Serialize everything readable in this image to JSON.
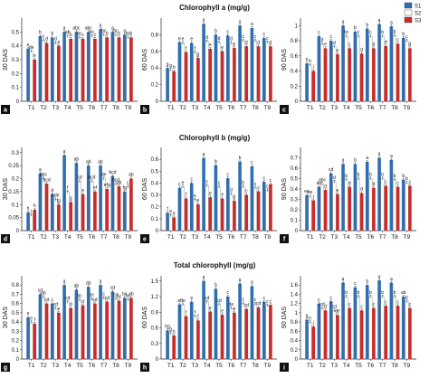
{
  "figure": {
    "row_titles": [
      "Chlorophyll a (mg/g)",
      "Chlorophyll b (mg/g)",
      "Total chlorophyll (mg/g)"
    ],
    "legend": [
      {
        "name": "S1",
        "color": "#2f6fb0"
      },
      {
        "name": "S2",
        "color": "#ffffff"
      },
      {
        "name": "S3",
        "color": "#cc2b2b"
      }
    ],
    "treatments": [
      "T1",
      "T2",
      "T3",
      "T4",
      "T5",
      "T6",
      "T7",
      "T8",
      "T9"
    ]
  },
  "chart_data": [
    {
      "type": "bar",
      "panel": "a",
      "ylabel": "30 DAS",
      "ylim": [
        0,
        0.6
      ],
      "yticks": [
        0,
        0.1,
        0.2,
        0.3,
        0.4,
        0.5
      ],
      "categories": [
        "T1",
        "T2",
        "T3",
        "T4",
        "T5",
        "T6",
        "T7",
        "T8",
        "T9"
      ],
      "series": [
        {
          "name": "S1",
          "values": [
            0.38,
            0.47,
            0.46,
            0.5,
            0.5,
            0.5,
            0.52,
            0.5,
            0.48
          ]
        },
        {
          "name": "S2",
          "values": [
            0.36,
            0.44,
            0.42,
            0.47,
            0.46,
            0.47,
            0.48,
            0.48,
            0.46
          ]
        },
        {
          "name": "S3",
          "values": [
            0.3,
            0.42,
            0.4,
            0.45,
            0.45,
            0.45,
            0.46,
            0.46,
            0.46
          ]
        }
      ],
      "labels": [
        [
          "e",
          "de",
          "e"
        ],
        [
          "b",
          "c",
          "d"
        ],
        [
          "b",
          "d",
          "e"
        ],
        [
          "a",
          "ab",
          "b"
        ],
        [
          "abc",
          "bc",
          "c"
        ],
        [
          "abc",
          "bc",
          "c"
        ],
        [
          "a",
          "bc",
          "b"
        ],
        [
          "a",
          "bc",
          "b"
        ],
        [
          "a",
          "bc",
          "b"
        ]
      ]
    },
    {
      "type": "bar",
      "panel": "b",
      "ylabel": "60 DAS",
      "ylim": [
        0,
        1.0
      ],
      "yticks": [
        0,
        0.2,
        0.4,
        0.6,
        0.8
      ],
      "categories": [
        "T1",
        "T2",
        "T3",
        "T4",
        "T5",
        "T6",
        "T7",
        "T8",
        "T9"
      ],
      "series": [
        {
          "name": "S1",
          "values": [
            0.4,
            0.71,
            0.7,
            0.93,
            0.8,
            0.79,
            0.91,
            0.88,
            0.76
          ]
        },
        {
          "name": "S2",
          "values": [
            0.38,
            0.7,
            0.59,
            0.72,
            0.71,
            0.7,
            0.73,
            0.73,
            0.71
          ]
        },
        {
          "name": "S3",
          "values": [
            0.36,
            0.59,
            0.52,
            0.63,
            0.6,
            0.64,
            0.66,
            0.66,
            0.66
          ]
        }
      ],
      "labels": [
        [
          "g",
          "g",
          "h"
        ],
        [
          "e",
          "e",
          "f"
        ],
        [
          "e",
          "f",
          "g"
        ],
        [
          "a",
          "d",
          "e"
        ],
        [
          "b",
          "d",
          "e"
        ],
        [
          "c",
          "d",
          "e"
        ],
        [
          "a",
          "c",
          "d"
        ],
        [
          "a",
          "c",
          "d"
        ],
        [
          "c",
          "c",
          "d"
        ]
      ]
    },
    {
      "type": "bar",
      "panel": "c",
      "ylabel": "90 DAS",
      "ylim": [
        0,
        1.1
      ],
      "yticks": [
        0,
        0.2,
        0.4,
        0.6,
        0.8,
        1.0
      ],
      "categories": [
        "T1",
        "T2",
        "T3",
        "T4",
        "T5",
        "T6",
        "T7",
        "T8",
        "T9"
      ],
      "series": [
        {
          "name": "S1",
          "values": [
            0.5,
            0.86,
            0.8,
            1.0,
            0.92,
            0.96,
            1.02,
            0.99,
            0.84
          ]
        },
        {
          "name": "S2",
          "values": [
            0.48,
            0.76,
            0.72,
            0.86,
            0.86,
            0.86,
            0.86,
            0.87,
            0.8
          ]
        },
        {
          "name": "S3",
          "values": [
            0.4,
            0.7,
            0.62,
            0.7,
            0.63,
            0.7,
            0.73,
            0.76,
            0.7
          ]
        }
      ],
      "labels": [
        [
          "h",
          "h",
          "i"
        ],
        [
          "c",
          "d",
          "e"
        ],
        [
          "c",
          "d",
          "e"
        ],
        [
          "a",
          "bc",
          "c"
        ],
        [
          "b",
          "c",
          "d"
        ],
        [
          "b",
          "c",
          "d"
        ],
        [
          "a",
          "b",
          "d"
        ],
        [
          "a",
          "b",
          "c"
        ],
        [
          "b",
          "c",
          "d"
        ]
      ]
    },
    {
      "type": "bar",
      "panel": "d",
      "ylabel": "30 DAS",
      "ylim": [
        0,
        0.32
      ],
      "yticks": [
        0,
        0.05,
        0.1,
        0.15,
        0.2,
        0.25,
        0.3
      ],
      "categories": [
        "T1",
        "T2",
        "T3",
        "T4",
        "T5",
        "T6",
        "T7",
        "T8",
        "T9"
      ],
      "series": [
        {
          "name": "S1",
          "values": [
            0.07,
            0.22,
            0.14,
            0.29,
            0.26,
            0.25,
            0.25,
            0.21,
            0.15
          ]
        },
        {
          "name": "S2",
          "values": [
            0.06,
            0.2,
            0.12,
            0.15,
            0.19,
            0.19,
            0.2,
            0.18,
            0.17
          ]
        },
        {
          "name": "S3",
          "values": [
            0.08,
            0.18,
            0.1,
            0.11,
            0.14,
            0.15,
            0.16,
            0.17,
            0.2
          ]
        }
      ],
      "labels": [
        [
          "h",
          "i",
          "h"
        ],
        [
          "a",
          "abc",
          "bcd"
        ],
        [
          "d",
          "bde",
          "fg"
        ],
        [
          "a",
          "f",
          "g"
        ],
        [
          "ab",
          "cd",
          "e"
        ],
        [
          "ab",
          "bcd",
          "ef"
        ],
        [
          "ab",
          "de",
          "efg"
        ],
        [
          "bcd",
          "bcd",
          "ab"
        ],
        [
          "fg",
          "c",
          "ab"
        ]
      ]
    },
    {
      "type": "bar",
      "panel": "e",
      "ylabel": "60 DAS",
      "ylim": [
        0,
        0.7
      ],
      "yticks": [
        0,
        0.1,
        0.2,
        0.3,
        0.4,
        0.5,
        0.6
      ],
      "categories": [
        "T1",
        "T2",
        "T3",
        "T4",
        "T5",
        "T6",
        "T7",
        "T8",
        "T9"
      ],
      "series": [
        {
          "name": "S1",
          "values": [
            0.15,
            0.36,
            0.4,
            0.61,
            0.55,
            0.44,
            0.58,
            0.54,
            0.41
          ]
        },
        {
          "name": "S2",
          "values": [
            0.13,
            0.37,
            0.26,
            0.38,
            0.37,
            0.31,
            0.37,
            0.36,
            0.34
          ]
        },
        {
          "name": "S3",
          "values": [
            0.11,
            0.27,
            0.22,
            0.28,
            0.27,
            0.25,
            0.3,
            0.33,
            0.39
          ]
        }
      ],
      "labels": [
        [
          "f",
          "e",
          "e"
        ],
        [
          "c",
          "e",
          "f"
        ],
        [
          "c",
          "e",
          "e"
        ],
        [
          "a",
          "c",
          "e"
        ],
        [
          "b",
          "c",
          "e"
        ],
        [
          "c",
          "d",
          "d"
        ],
        [
          "b",
          "b",
          "c"
        ],
        [
          "c",
          "c",
          "c"
        ],
        [
          "c",
          "c",
          "c"
        ]
      ]
    },
    {
      "type": "bar",
      "panel": "f",
      "ylabel": "90 DAS",
      "ylim": [
        0,
        0.8
      ],
      "yticks": [
        0,
        0.1,
        0.2,
        0.3,
        0.4,
        0.5,
        0.6,
        0.7
      ],
      "categories": [
        "T1",
        "T2",
        "T3",
        "T4",
        "T5",
        "T6",
        "T7",
        "T8",
        "T9"
      ],
      "series": [
        {
          "name": "S1",
          "values": [
            0.34,
            0.42,
            0.55,
            0.64,
            0.64,
            0.66,
            0.7,
            0.68,
            0.49
          ]
        },
        {
          "name": "S2",
          "values": [
            0.33,
            0.45,
            0.47,
            0.49,
            0.5,
            0.5,
            0.5,
            0.49,
            0.46
          ]
        },
        {
          "name": "S3",
          "values": [
            0.29,
            0.39,
            0.35,
            0.42,
            0.36,
            0.41,
            0.43,
            0.42,
            0.43
          ]
        }
      ],
      "labels": [
        [
          "ee",
          "ee",
          "i"
        ],
        [
          "de",
          "abc",
          "d"
        ],
        [
          "cd",
          "d",
          "e"
        ],
        [
          "a",
          "b",
          "d"
        ],
        [
          "b",
          "b",
          "d"
        ],
        [
          "a",
          "b",
          "d"
        ],
        [
          "a",
          "b",
          "c"
        ],
        [
          "a",
          "b",
          "c"
        ],
        [
          "b",
          "b",
          "c"
        ]
      ]
    },
    {
      "type": "bar",
      "panel": "g",
      "ylabel": "30 DAS",
      "ylim": [
        0,
        0.9
      ],
      "yticks": [
        0,
        0.1,
        0.2,
        0.3,
        0.4,
        0.5,
        0.6,
        0.7,
        0.8
      ],
      "categories": [
        "T1",
        "T2",
        "T3",
        "T4",
        "T5",
        "T6",
        "T7",
        "T8",
        "T9"
      ],
      "series": [
        {
          "name": "S1",
          "values": [
            0.45,
            0.7,
            0.6,
            0.8,
            0.75,
            0.78,
            0.8,
            0.73,
            0.66
          ]
        },
        {
          "name": "S2",
          "values": [
            0.4,
            0.67,
            0.55,
            0.62,
            0.64,
            0.65,
            0.66,
            0.65,
            0.64
          ]
        },
        {
          "name": "S3",
          "values": [
            0.38,
            0.6,
            0.5,
            0.55,
            0.58,
            0.6,
            0.62,
            0.63,
            0.66
          ]
        }
      ],
      "labels": [
        [
          "e",
          "e",
          "f"
        ],
        [
          "cd",
          "ab",
          "cd"
        ],
        [
          "c",
          "cd",
          "e"
        ],
        [
          "a",
          "cd",
          "d"
        ],
        [
          "ab",
          "bc",
          "d"
        ],
        [
          "ab",
          "bc",
          "cd"
        ],
        [
          "a",
          "c",
          "cd"
        ],
        [
          "cd",
          "cd",
          "bc"
        ],
        [
          "bc",
          "bc",
          "ab"
        ]
      ]
    },
    {
      "type": "bar",
      "panel": "h",
      "ylabel": "60 DAS",
      "ylim": [
        0,
        1.6
      ],
      "yticks": [
        0,
        0.3,
        0.6,
        0.9,
        1.2,
        1.5
      ],
      "categories": [
        "T1",
        "T2",
        "T3",
        "T4",
        "T5",
        "T6",
        "T7",
        "T8",
        "T9"
      ],
      "series": [
        {
          "name": "S1",
          "values": [
            0.55,
            1.05,
            1.1,
            1.5,
            1.35,
            1.2,
            1.45,
            1.4,
            1.1
          ]
        },
        {
          "name": "S2",
          "values": [
            0.5,
            1.05,
            0.82,
            1.1,
            1.05,
            0.98,
            1.07,
            1.06,
            1.03
          ]
        },
        {
          "name": "S3",
          "values": [
            0.45,
            0.82,
            0.74,
            0.91,
            0.85,
            0.89,
            0.96,
            0.99,
            1.04
          ]
        }
      ],
      "labels": [
        [
          "hg",
          "g",
          "h"
        ],
        [
          "ef",
          "de",
          "f"
        ],
        [
          "e",
          "f",
          "f"
        ],
        [
          "a",
          "cd",
          "e"
        ],
        [
          "b",
          "cd",
          "e"
        ],
        [
          "c",
          "de",
          "e"
        ],
        [
          "a",
          "c",
          "cd"
        ],
        [
          "a",
          "c",
          "cd"
        ],
        [
          "c",
          "c",
          "c"
        ]
      ]
    },
    {
      "type": "bar",
      "panel": "i",
      "ylabel": "90 DAS",
      "ylim": [
        0,
        1.8
      ],
      "yticks": [
        0,
        0.2,
        0.4,
        0.6,
        0.8,
        1.0,
        1.2,
        1.4,
        1.6
      ],
      "categories": [
        "T1",
        "T2",
        "T3",
        "T4",
        "T5",
        "T6",
        "T7",
        "T8",
        "T9"
      ],
      "series": [
        {
          "name": "S1",
          "values": [
            0.85,
            1.2,
            1.25,
            1.65,
            1.55,
            1.6,
            1.7,
            1.65,
            1.35
          ]
        },
        {
          "name": "S2",
          "values": [
            0.8,
            1.1,
            1.05,
            1.35,
            1.35,
            1.35,
            1.35,
            1.35,
            1.25
          ]
        },
        {
          "name": "S3",
          "values": [
            0.7,
            1.05,
            0.95,
            1.1,
            1.05,
            1.1,
            1.15,
            1.15,
            1.1
          ]
        }
      ],
      "labels": [
        [
          "g",
          "h",
          "i"
        ],
        [
          "c",
          "cd",
          "d"
        ],
        [
          "c",
          "cd",
          "de"
        ],
        [
          "a",
          "b",
          "c"
        ],
        [
          "c",
          "b",
          "c"
        ],
        [
          "b",
          "b",
          "c"
        ],
        [
          "a",
          "b",
          "c"
        ],
        [
          "a",
          "b",
          "c"
        ],
        [
          "ab",
          "b",
          "c"
        ]
      ]
    }
  ]
}
